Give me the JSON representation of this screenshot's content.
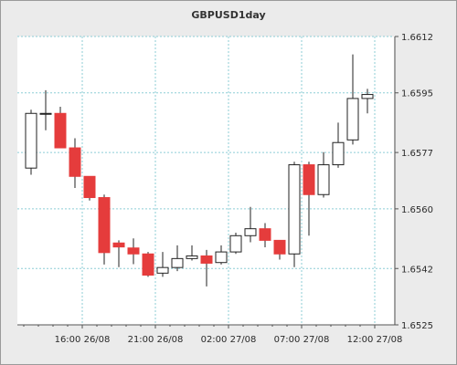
{
  "chart_data": {
    "type": "candlestick",
    "title": "GBPUSD1day",
    "xlabel": "",
    "ylabel": "",
    "ylim": [
      1.6525,
      1.6612
    ],
    "y_ticks": [
      "1.6525",
      "1.6542",
      "1.6560",
      "1.6577",
      "1.6595",
      "1.6612"
    ],
    "x_ticks": [
      "16:00 26/08",
      "21:00 26/08",
      "02:00 27/08",
      "07:00 27/08",
      "12:00 27/08"
    ],
    "grid": true,
    "candles": [
      {
        "open": 1.65723,
        "close": 1.65888,
        "high": 1.65899,
        "low": 1.65703
      },
      {
        "open": 1.65888,
        "close": 1.65888,
        "high": 1.65958,
        "low": 1.65837
      },
      {
        "open": 1.65888,
        "close": 1.65784,
        "high": 1.65908,
        "low": 1.65784
      },
      {
        "open": 1.65784,
        "close": 1.65698,
        "high": 1.65813,
        "low": 1.65663
      },
      {
        "open": 1.65698,
        "close": 1.65634,
        "high": 1.65698,
        "low": 1.65625
      },
      {
        "open": 1.65634,
        "close": 1.65468,
        "high": 1.65643,
        "low": 1.65432
      },
      {
        "open": 1.65497,
        "close": 1.65485,
        "high": 1.65505,
        "low": 1.65424
      },
      {
        "open": 1.65482,
        "close": 1.65464,
        "high": 1.65511,
        "low": 1.65433
      },
      {
        "open": 1.65464,
        "close": 1.654,
        "high": 1.6547,
        "low": 1.65395
      },
      {
        "open": 1.65406,
        "close": 1.65423,
        "high": 1.6547,
        "low": 1.65395
      },
      {
        "open": 1.65423,
        "close": 1.6545,
        "high": 1.6549,
        "low": 1.65412
      },
      {
        "open": 1.6545,
        "close": 1.65458,
        "high": 1.6549,
        "low": 1.65444
      },
      {
        "open": 1.65458,
        "close": 1.65436,
        "high": 1.65476,
        "low": 1.65366
      },
      {
        "open": 1.65438,
        "close": 1.6547,
        "high": 1.6549,
        "low": 1.65432
      },
      {
        "open": 1.6547,
        "close": 1.65519,
        "high": 1.65528,
        "low": 1.65464
      },
      {
        "open": 1.65519,
        "close": 1.6554,
        "high": 1.65606,
        "low": 1.65499
      },
      {
        "open": 1.6554,
        "close": 1.65505,
        "high": 1.65557,
        "low": 1.65484
      },
      {
        "open": 1.65505,
        "close": 1.65464,
        "high": 1.65505,
        "low": 1.65447
      },
      {
        "open": 1.65464,
        "close": 1.65733,
        "high": 1.65742,
        "low": 1.65424
      },
      {
        "open": 1.65733,
        "close": 1.65643,
        "high": 1.65742,
        "low": 1.65519
      },
      {
        "open": 1.65643,
        "close": 1.65733,
        "high": 1.65771,
        "low": 1.65634
      },
      {
        "open": 1.65733,
        "close": 1.658,
        "high": 1.6586,
        "low": 1.65724
      },
      {
        "open": 1.65808,
        "close": 1.65933,
        "high": 1.66066,
        "low": 1.65794
      },
      {
        "open": 1.65933,
        "close": 1.65945,
        "high": 1.65962,
        "low": 1.65888
      }
    ]
  }
}
